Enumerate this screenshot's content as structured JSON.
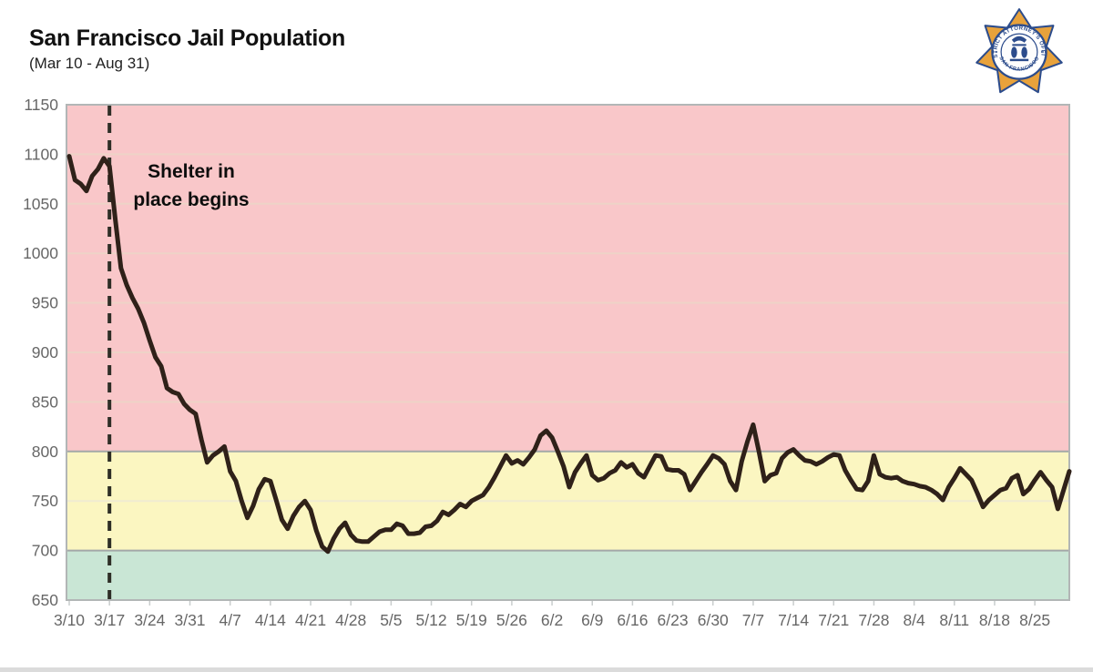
{
  "header": {
    "title": "San Francisco Jail Population",
    "subtitle": "(Mar 10 - Aug 31)"
  },
  "badge": {
    "top_text": "DISTRICT ATTORNEY'S OFFICE",
    "bottom_text": "SAN FRANCISCO",
    "star_color": "#E8A23B",
    "outline_color": "#2C4C8C"
  },
  "annotation": {
    "line1": "Shelter in",
    "line2": "place begins",
    "event_tick": "3/17"
  },
  "chart_data": {
    "type": "line",
    "title": "San Francisco Jail Population",
    "xlabel": "",
    "ylabel": "",
    "ylim": [
      650,
      1150
    ],
    "y_ticks": [
      1150,
      1100,
      1050,
      1000,
      950,
      900,
      850,
      800,
      750,
      700,
      650
    ],
    "x_tick_labels": [
      "3/10",
      "3/17",
      "3/24",
      "3/31",
      "4/7",
      "4/14",
      "4/21",
      "4/28",
      "5/5",
      "5/12",
      "5/19",
      "5/26",
      "6/2",
      "6/9",
      "6/16",
      "6/23",
      "6/30",
      "7/7",
      "7/14",
      "7/21",
      "7/28",
      "8/4",
      "8/11",
      "8/18",
      "8/25"
    ],
    "x_tick_interval_days": 7,
    "values_start_date": "3/10",
    "values_end_date": "8/31",
    "frequency": "daily",
    "dashed_marker_day_index": 7,
    "line_color": "#2f2119",
    "grid_on": true,
    "legend": "none",
    "bands": [
      {
        "name": "red",
        "from": 800,
        "to": 1150,
        "color": "#f9c7c9"
      },
      {
        "name": "yellow",
        "from": 700,
        "to": 800,
        "color": "#fbf6c1"
      },
      {
        "name": "green",
        "from": 650,
        "to": 700,
        "color": "#c9e6d5"
      }
    ],
    "values": [
      1098,
      1074,
      1070,
      1063,
      1078,
      1085,
      1096,
      1088,
      1035,
      985,
      968,
      955,
      944,
      930,
      912,
      895,
      886,
      864,
      860,
      858,
      848,
      842,
      838,
      812,
      789,
      796,
      800,
      805,
      780,
      770,
      750,
      733,
      745,
      762,
      772,
      770,
      751,
      731,
      722,
      735,
      744,
      750,
      741,
      720,
      704,
      699,
      712,
      722,
      728,
      716,
      710,
      709,
      709,
      714,
      719,
      721,
      721,
      727,
      725,
      717,
      717,
      718,
      724,
      725,
      730,
      739,
      736,
      741,
      747,
      744,
      750,
      753,
      756,
      764,
      774,
      785,
      796,
      788,
      791,
      787,
      794,
      802,
      816,
      821,
      814,
      800,
      785,
      764,
      779,
      788,
      796,
      776,
      771,
      773,
      778,
      781,
      789,
      784,
      787,
      778,
      774,
      785,
      796,
      795,
      782,
      781,
      781,
      777,
      761,
      770,
      779,
      787,
      796,
      793,
      787,
      770,
      761,
      790,
      810,
      827,
      800,
      770,
      776,
      778,
      793,
      799,
      802,
      796,
      791,
      790,
      787,
      790,
      794,
      797,
      796,
      781,
      771,
      762,
      761,
      770,
      796,
      777,
      774,
      773,
      774,
      770,
      768,
      767,
      765,
      764,
      761,
      757,
      751,
      764,
      773,
      783,
      777,
      771,
      758,
      744,
      751,
      756,
      761,
      763,
      773,
      776,
      757,
      762,
      771,
      779,
      771,
      764,
      742,
      761,
      780
    ]
  }
}
